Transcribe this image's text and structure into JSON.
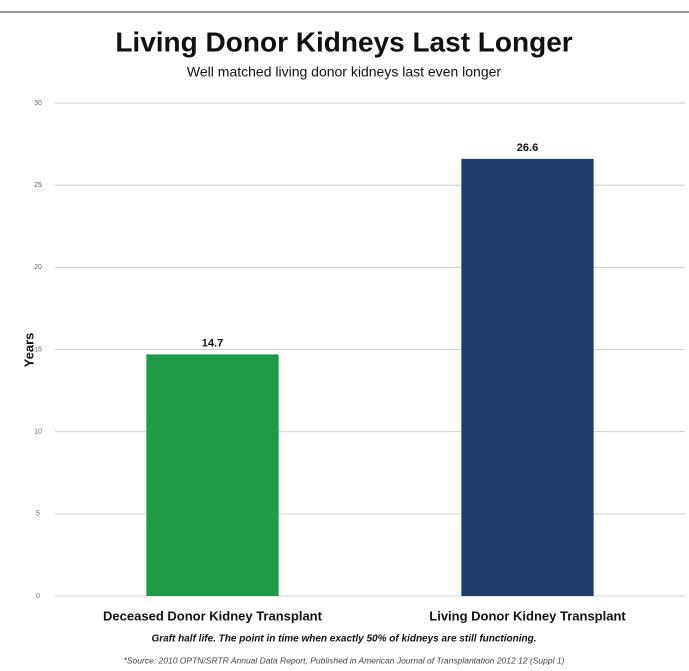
{
  "chart_data": {
    "type": "bar",
    "title": "Living Donor Kidneys Last Longer",
    "subtitle": "Well matched living donor kidneys last even longer",
    "y_label": "Years",
    "categories": [
      "Deceased Donor Kidney Transplant",
      "Living Donor Kidney Transplant"
    ],
    "values": [
      14.7,
      26.6
    ],
    "colors": [
      "#1f9a47",
      "#1f3c6c"
    ],
    "ylim": [
      0,
      30
    ],
    "yticks": [
      0,
      5,
      10,
      15,
      20,
      25,
      30
    ],
    "grid": true,
    "footnote": "Graft half life.  The point in time when exactly 50% of kidneys are still functioning.",
    "source": "*Source: 2010 OPTN/SRTR Annual Data Report, Published in American Journal of Transplantation 2012 12 (Suppl 1)"
  }
}
